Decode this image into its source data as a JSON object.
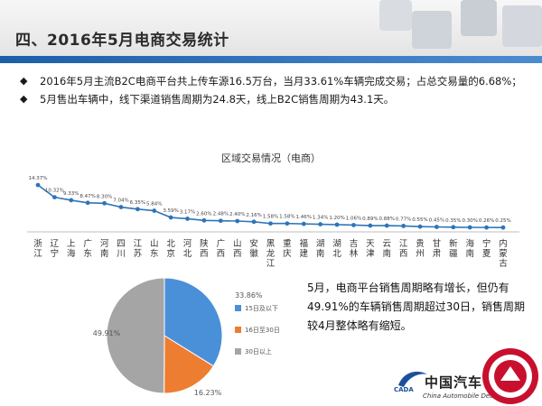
{
  "slide": {
    "title": "四、2016年5月电商交易统计",
    "bullets": [
      "2016年5月主流B2C电商平台共上传车源16.5万台，当月33.61%车辆完成交易；占总交易量的6.68%；",
      "5月售出车辆中，线下渠道销售周期为24.8天，线上B2C销售周期为43.1天。"
    ],
    "bullet_marker": "◆",
    "note": "5月，电商平台销售周期略有增长，但仍有49.91%的车辆销售周期超过30日，销售周期较4月整体略有缩短。",
    "logo": {
      "name": "中国汽车",
      "sub": "China Automobile Dealers",
      "abbr": "CADA"
    }
  },
  "colors": {
    "line": "#2e75b6",
    "pie_blue": "#4a90d9",
    "pie_orange": "#ed7d31",
    "pie_gray": "#a5a5a5",
    "header_bar": "#1d5ea8"
  },
  "chart_data": [
    {
      "type": "line",
      "title": "区域交易情况（电商）",
      "categories": [
        "浙江",
        "辽宁",
        "上海",
        "广东",
        "河南",
        "四川",
        "江苏",
        "山东",
        "北京",
        "河北",
        "陕西",
        "广西",
        "山西",
        "安徽",
        "黑龙江",
        "重庆",
        "福建",
        "湖南",
        "湖北",
        "吉林",
        "天津",
        "云南",
        "江西",
        "贵州",
        "甘肃",
        "新疆",
        "海南",
        "宁夏",
        "内蒙古"
      ],
      "values": [
        14.37,
        10.32,
        9.33,
        8.47,
        8.3,
        7.04,
        6.35,
        5.84,
        3.59,
        3.17,
        2.6,
        2.48,
        2.4,
        2.16,
        1.58,
        1.58,
        1.46,
        1.34,
        1.2,
        1.06,
        0.89,
        0.88,
        0.77,
        0.55,
        0.45,
        0.35,
        0.3,
        0.26,
        0.25
      ],
      "value_labels": [
        "14.37%",
        "10.32%",
        "9.33%",
        "8.47%",
        "8.30%",
        "7.04%",
        "6.35%",
        "5.84%",
        "3.59%",
        "3.17%",
        "2.60%",
        "2.48%",
        "2.40%",
        "2.16%",
        "1.58%",
        "1.58%",
        "1.46%",
        "1.34%",
        "1.20%",
        "1.06%",
        "0.89%",
        "0.88%",
        "0.77%",
        "0.55%",
        "0.45%",
        "0.35%",
        "0.30%",
        "0.26%",
        "0.25%"
      ],
      "ylim": [
        0,
        15
      ],
      "grid": false
    },
    {
      "type": "pie",
      "labels": [
        "15日及以下",
        "16日至30日",
        "30日以上"
      ],
      "values": [
        33.86,
        16.23,
        49.91
      ],
      "value_labels": [
        "33.86%",
        "16.23%",
        "49.91%"
      ],
      "legend": "right"
    }
  ]
}
